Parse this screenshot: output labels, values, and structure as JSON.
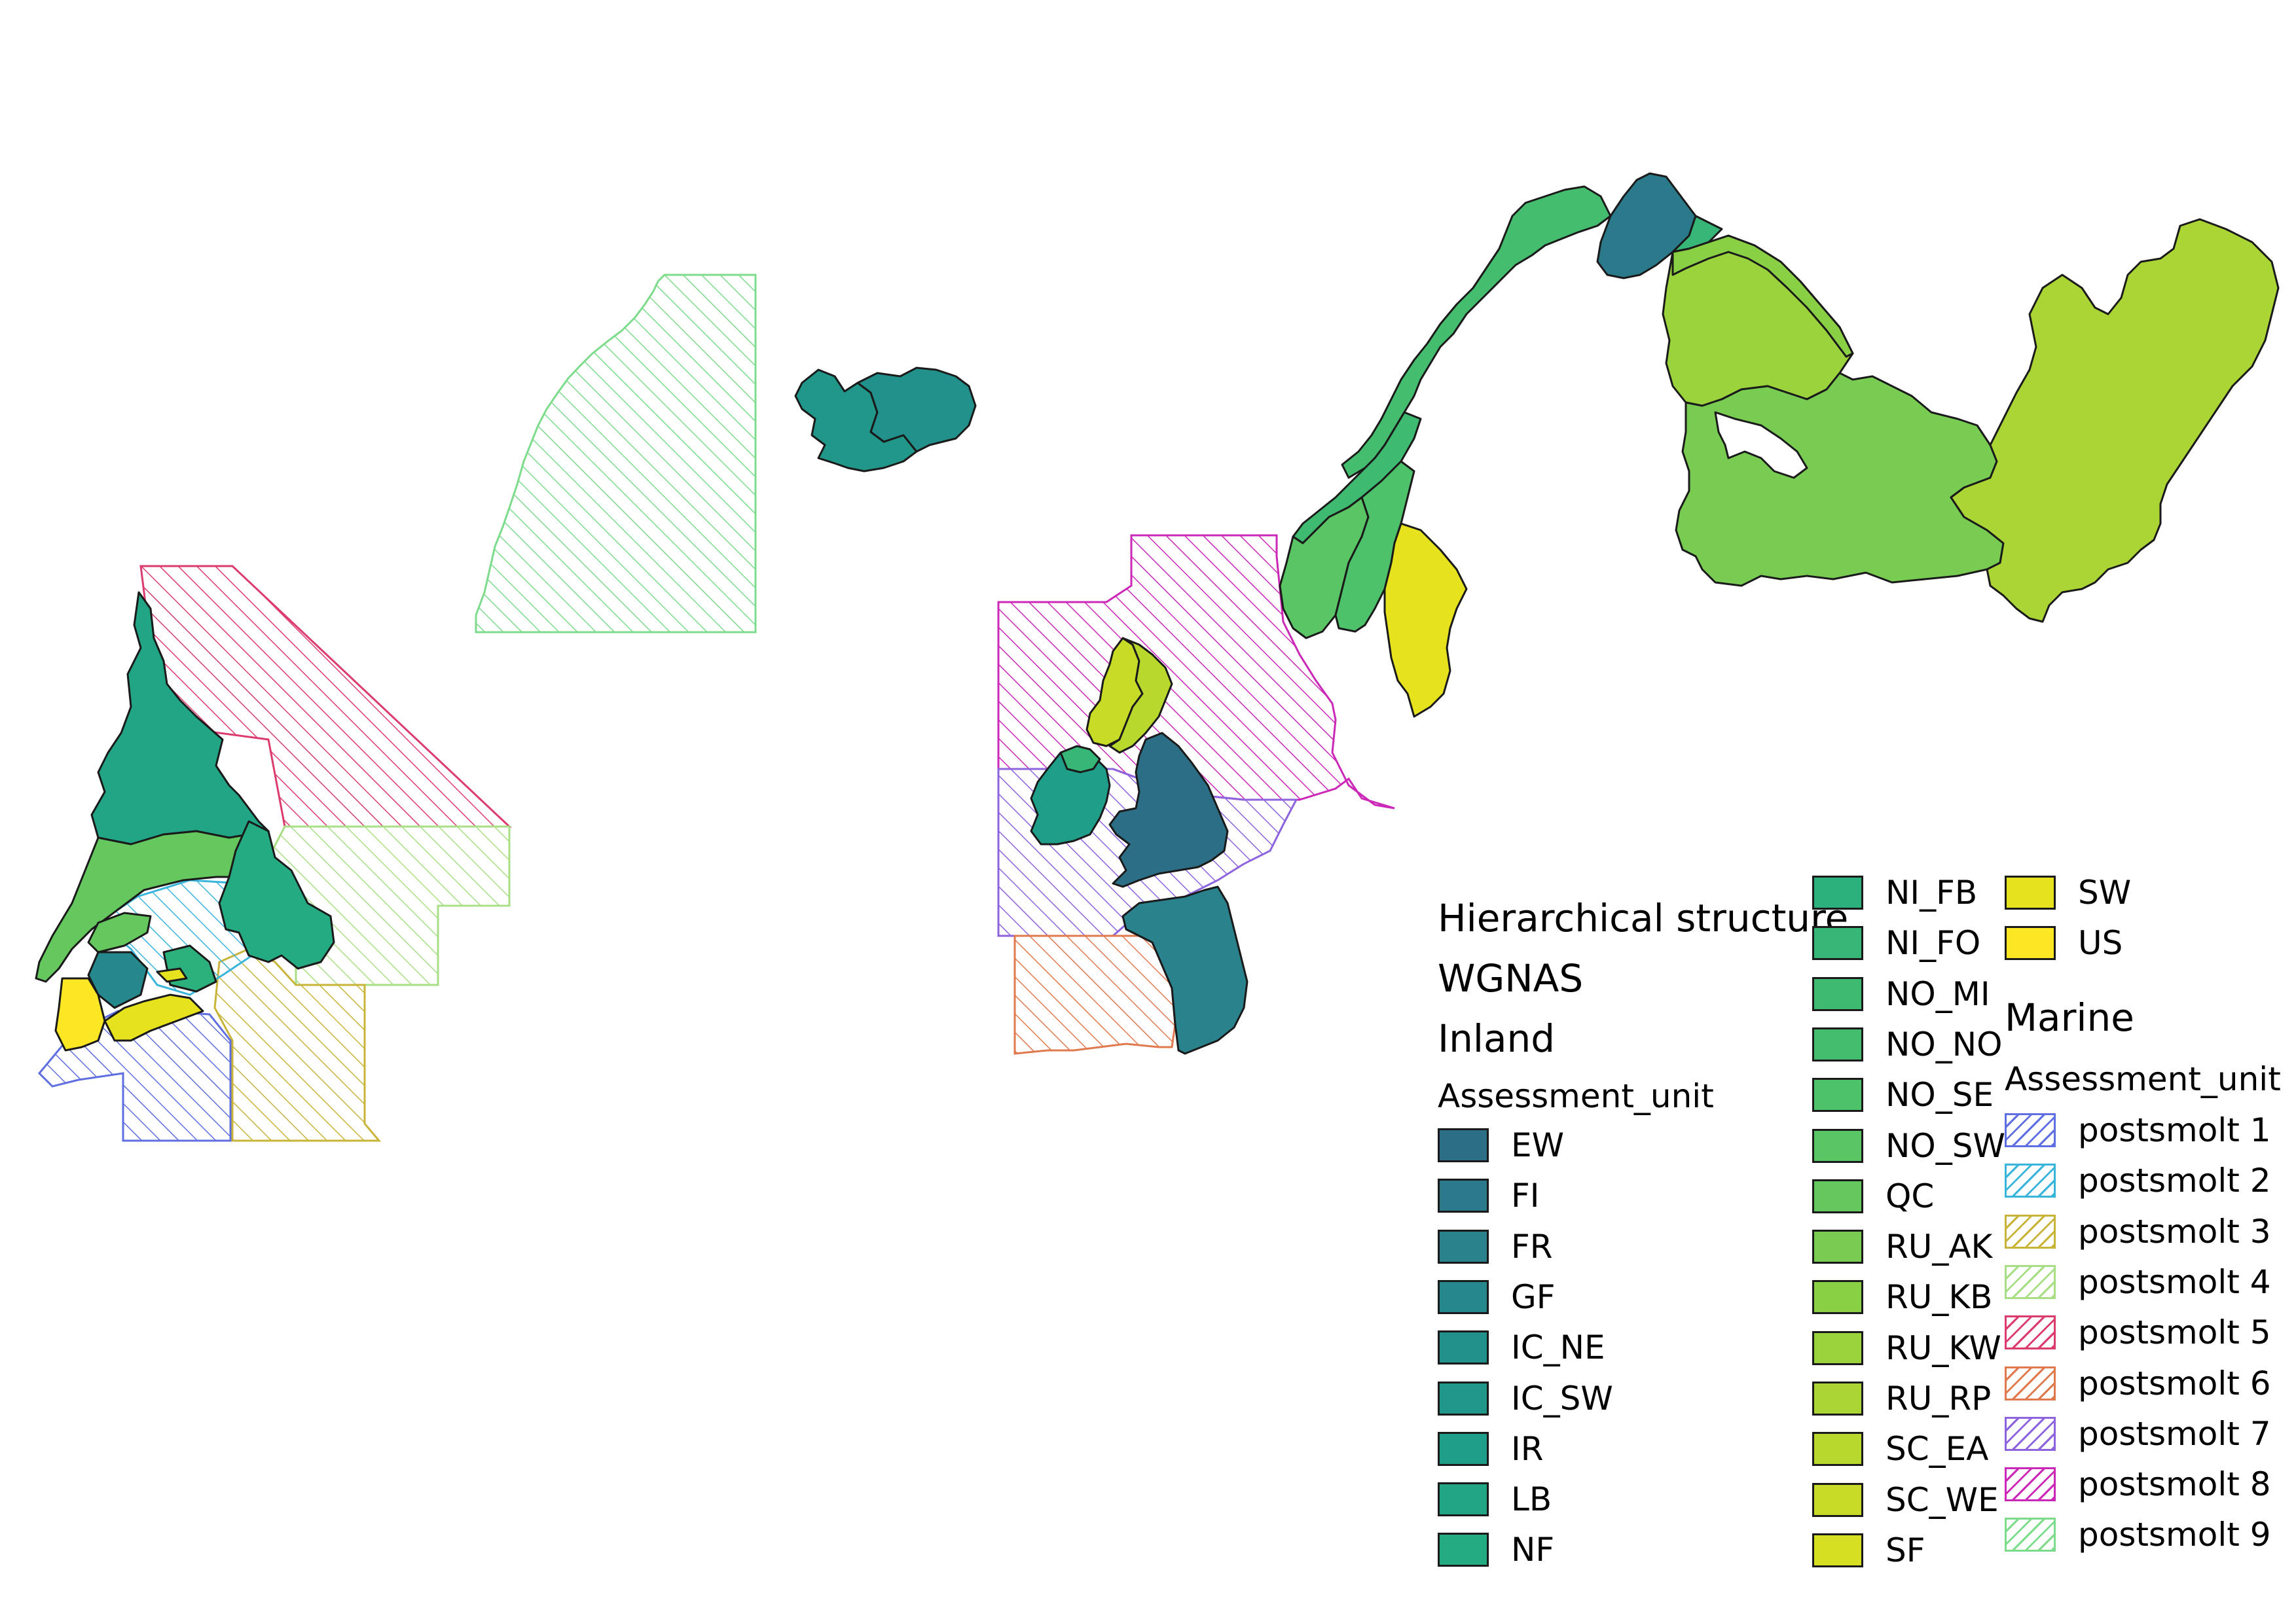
{
  "legend": {
    "title": "Hierarchical structure",
    "group": "WGNAS",
    "inland": {
      "heading": "Inland",
      "field": "Assessment_unit",
      "items": [
        {
          "label": "EW",
          "color": "#2c6e85"
        },
        {
          "label": "FI",
          "color": "#2b7a8b"
        },
        {
          "label": "FR",
          "color": "#29828c"
        },
        {
          "label": "GF",
          "color": "#25888c"
        },
        {
          "label": "IC_NE",
          "color": "#22918c"
        },
        {
          "label": "IC_SW",
          "color": "#21978a"
        },
        {
          "label": "IR",
          "color": "#1f9e89"
        },
        {
          "label": "LB",
          "color": "#21a585"
        },
        {
          "label": "NF",
          "color": "#25ab82"
        },
        {
          "label": "NI_FB",
          "color": "#2db17c"
        },
        {
          "label": "NI_FO",
          "color": "#36b677"
        },
        {
          "label": "NO_MI",
          "color": "#3fbb71"
        },
        {
          "label": "NO_NO",
          "color": "#45bd6e"
        },
        {
          "label": "NO_SE",
          "color": "#4ec26a"
        },
        {
          "label": "NO_SW",
          "color": "#5ac564"
        },
        {
          "label": "QC",
          "color": "#65c85e"
        },
        {
          "label": "RU_AK",
          "color": "#78cc52"
        },
        {
          "label": "RU_KB",
          "color": "#8ad045"
        },
        {
          "label": "RU_KW",
          "color": "#9bd33c"
        },
        {
          "label": "RU_RP",
          "color": "#aad534"
        },
        {
          "label": "SC_EA",
          "color": "#b8d82e"
        },
        {
          "label": "SC_WE",
          "color": "#c8db26"
        },
        {
          "label": "SF",
          "color": "#d6df22"
        },
        {
          "label": "SW",
          "color": "#e7e21e"
        },
        {
          "label": "US",
          "color": "#fde725"
        }
      ]
    },
    "marine": {
      "heading": "Marine",
      "field": "Assessment_unit",
      "items": [
        {
          "label": "postsmolt 1",
          "color": "#5f6ee0"
        },
        {
          "label": "postsmolt 2",
          "color": "#39b5dc"
        },
        {
          "label": "postsmolt 3",
          "color": "#c9b43a"
        },
        {
          "label": "postsmolt 4",
          "color": "#a8df86"
        },
        {
          "label": "postsmolt 5",
          "color": "#dc3b6e"
        },
        {
          "label": "postsmolt 6",
          "color": "#e07a4e"
        },
        {
          "label": "postsmolt 7",
          "color": "#8e63de"
        },
        {
          "label": "postsmolt 8",
          "color": "#cc28b8"
        },
        {
          "label": "postsmolt 9",
          "color": "#7ddc8c"
        }
      ]
    }
  }
}
